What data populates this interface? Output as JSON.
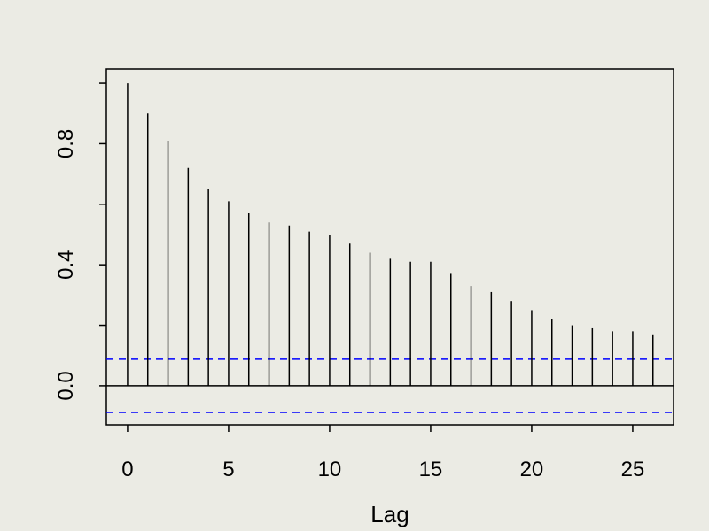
{
  "chart_data": {
    "type": "acf",
    "xlabel": "Lag",
    "x": [
      0,
      1,
      2,
      3,
      4,
      5,
      6,
      7,
      8,
      9,
      10,
      11,
      12,
      13,
      14,
      15,
      16,
      17,
      18,
      19,
      20,
      21,
      22,
      23,
      24,
      25,
      26
    ],
    "values": [
      1.0,
      0.9,
      0.81,
      0.72,
      0.65,
      0.61,
      0.57,
      0.54,
      0.53,
      0.51,
      0.5,
      0.47,
      0.44,
      0.42,
      0.41,
      0.41,
      0.37,
      0.33,
      0.31,
      0.28,
      0.25,
      0.22,
      0.2,
      0.19,
      0.18,
      0.18,
      0.17
    ],
    "color": "#000000",
    "confidence_bounds": [
      -0.088,
      0.088
    ],
    "confidence_color": "#0000ff",
    "xlim": [
      -1.05,
      27.02
    ],
    "ylim": [
      -0.129,
      1.047
    ],
    "xticks": [
      0,
      5,
      10,
      15,
      20,
      25
    ],
    "yticks": [
      {
        "value": 0,
        "label": "0.0"
      },
      {
        "value": 0.2,
        "label": null
      },
      {
        "value": 0.4,
        "label": "0.4"
      },
      {
        "value": 0.6,
        "label": null
      },
      {
        "value": 0.8,
        "label": "0.8"
      },
      {
        "value": 1.0,
        "label": null
      }
    ]
  }
}
